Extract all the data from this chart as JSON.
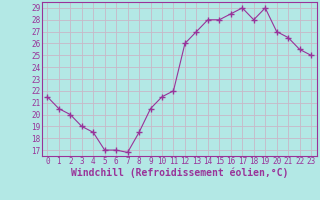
{
  "x": [
    0,
    1,
    2,
    3,
    4,
    5,
    6,
    7,
    8,
    9,
    10,
    11,
    12,
    13,
    14,
    15,
    16,
    17,
    18,
    19,
    20,
    21,
    22,
    23
  ],
  "y": [
    21.5,
    20.5,
    20.0,
    19.0,
    18.5,
    17.0,
    17.0,
    16.8,
    18.5,
    20.5,
    21.5,
    22.0,
    26.0,
    27.0,
    28.0,
    28.0,
    28.5,
    29.0,
    28.0,
    29.0,
    27.0,
    26.5,
    25.5,
    25.0
  ],
  "line_color": "#993399",
  "marker": "+",
  "marker_size": 4,
  "bg_color": "#b3e8e5",
  "grid_color": "#c8b8c8",
  "xlabel": "Windchill (Refroidissement éolien,°C)",
  "ylabel_ticks": [
    17,
    18,
    19,
    20,
    21,
    22,
    23,
    24,
    25,
    26,
    27,
    28,
    29
  ],
  "ylim": [
    16.5,
    29.5
  ],
  "xlim": [
    -0.5,
    23.5
  ],
  "tick_label_color": "#993399",
  "xlabel_color": "#993399",
  "tick_fontsize": 5.5,
  "xlabel_fontsize": 7.0,
  "xlabel_fontweight": "bold"
}
